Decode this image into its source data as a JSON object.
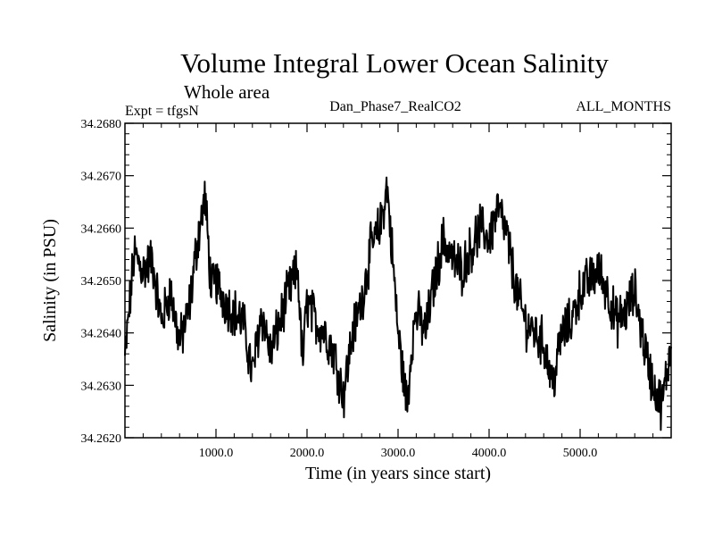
{
  "chart_data": {
    "type": "line",
    "title": "Volume Integral Lower Ocean Salinity",
    "subtitle": "Whole area",
    "expt_label": "Expt = tfgsN",
    "run_label": "Dan_Phase7_RealCO2",
    "months_label": "ALL_MONTHS",
    "xlabel": "Time (in years since start)",
    "ylabel": "Salinity (in PSU)",
    "xlim": [
      0,
      6000
    ],
    "ylim": [
      34.262,
      34.268
    ],
    "x_ticks": [
      1000,
      2000,
      3000,
      4000,
      5000
    ],
    "x_tick_labels": [
      "1000.0",
      "2000.0",
      "3000.0",
      "4000.0",
      "5000.0"
    ],
    "y_ticks": [
      34.262,
      34.263,
      34.264,
      34.265,
      34.266,
      34.267,
      34.268
    ],
    "y_tick_labels": [
      "34.2620",
      "34.2630",
      "34.2640",
      "34.2650",
      "34.2660",
      "34.2670",
      "34.2680"
    ],
    "grid": false,
    "series": [
      {
        "name": "salinity",
        "color": "#000000",
        "x": [
          0,
          100,
          200,
          300,
          400,
          500,
          600,
          700,
          800,
          880,
          950,
          1000,
          1100,
          1200,
          1300,
          1400,
          1500,
          1600,
          1700,
          1800,
          1900,
          1950,
          2000,
          2100,
          2200,
          2300,
          2400,
          2500,
          2600,
          2700,
          2800,
          2880,
          2950,
          3000,
          3100,
          3150,
          3200,
          3300,
          3400,
          3500,
          3600,
          3700,
          3800,
          3900,
          4000,
          4100,
          4200,
          4300,
          4400,
          4500,
          4600,
          4700,
          4800,
          4900,
          5000,
          5100,
          5200,
          5300,
          5400,
          5500,
          5600,
          5700,
          5800,
          5900,
          6000
        ],
        "values": [
          34.2635,
          34.2655,
          34.2652,
          34.2654,
          34.2642,
          34.2648,
          34.2638,
          34.2644,
          34.2658,
          34.2666,
          34.2648,
          34.265,
          34.2646,
          34.2644,
          34.2642,
          34.2632,
          34.2644,
          34.2636,
          34.2642,
          34.2648,
          34.2652,
          34.2634,
          34.2646,
          34.2642,
          34.264,
          34.2636,
          34.2628,
          34.264,
          34.2646,
          34.2656,
          34.266,
          34.2668,
          34.2652,
          34.264,
          34.2626,
          34.2638,
          34.2644,
          34.264,
          34.265,
          34.2658,
          34.2654,
          34.2652,
          34.2656,
          34.266,
          34.2658,
          34.2664,
          34.2658,
          34.2648,
          34.2642,
          34.264,
          34.2638,
          34.263,
          34.264,
          34.2642,
          34.2648,
          34.265,
          34.2652,
          34.2648,
          34.2642,
          34.2644,
          34.2648,
          34.2638,
          34.263,
          34.2626,
          34.2638
        ]
      }
    ]
  }
}
